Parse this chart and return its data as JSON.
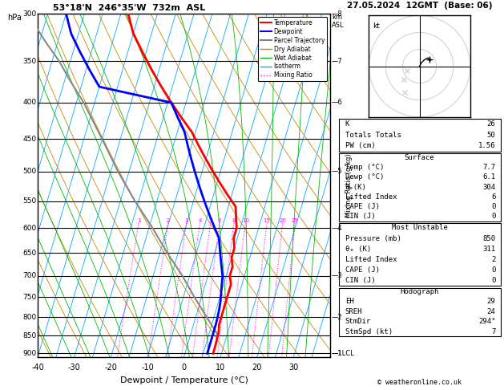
{
  "title_left": "53°18'N  246°35'W  732m  ASL",
  "title_right": "27.05.2024  12GMT  (Base: 06)",
  "xlabel": "Dewpoint / Temperature (°C)",
  "pressure_levels": [
    300,
    350,
    400,
    450,
    500,
    550,
    600,
    650,
    700,
    750,
    800,
    850,
    900
  ],
  "temp_xlim": [
    -40,
    40
  ],
  "temp_xticks": [
    -40,
    -30,
    -20,
    -10,
    0,
    10,
    20,
    30
  ],
  "km_ticks": [
    8,
    7,
    6,
    5,
    4,
    3,
    2,
    1
  ],
  "km_pressures": [
    300,
    350,
    400,
    500,
    600,
    700,
    800,
    900
  ],
  "lcl_pressure": 900,
  "bg_color": "#ffffff",
  "temp_data": {
    "pressure": [
      300,
      320,
      340,
      360,
      380,
      400,
      420,
      440,
      460,
      480,
      500,
      520,
      540,
      560,
      580,
      600,
      620,
      640,
      660,
      680,
      700,
      720,
      740,
      760,
      780,
      800,
      820,
      840,
      860,
      880,
      900
    ],
    "temp": [
      -43,
      -40,
      -36,
      -32,
      -28,
      -24,
      -20,
      -16,
      -13,
      -10,
      -7,
      -4,
      -1,
      2,
      3,
      4,
      4,
      5,
      5,
      6,
      6,
      7,
      7,
      7,
      7,
      7,
      7,
      7.5,
      7.6,
      7.7,
      7.7
    ]
  },
  "dewp_data": {
    "pressure": [
      300,
      320,
      340,
      360,
      380,
      400,
      420,
      440,
      460,
      480,
      500,
      520,
      540,
      560,
      580,
      600,
      620,
      640,
      660,
      680,
      700,
      720,
      740,
      760,
      780,
      800,
      820,
      840,
      860,
      880,
      900
    ],
    "dewp": [
      -60,
      -57,
      -53,
      -49,
      -45,
      -24,
      -21,
      -18,
      -16,
      -14,
      -12,
      -10,
      -8,
      -6,
      -4,
      -2,
      0,
      1,
      2,
      3,
      4,
      4.5,
      5,
      5.5,
      5.8,
      6,
      6.1,
      6.1,
      6.1,
      6.1,
      6.1
    ]
  },
  "parcel_data": {
    "pressure": [
      850,
      800,
      750,
      700,
      650,
      600,
      550,
      500,
      450,
      400,
      370,
      350,
      330,
      310,
      300
    ],
    "temp": [
      7.7,
      3,
      -2,
      -7,
      -13,
      -19,
      -26,
      -33,
      -40,
      -48,
      -54,
      -58,
      -63,
      -68,
      -71
    ]
  },
  "colors": {
    "temp": "#ff0000",
    "dewp": "#0000ff",
    "parcel": "#888888",
    "dry_adiabat": "#cc8800",
    "wet_adiabat": "#00bb00",
    "isotherm": "#00aaff",
    "mixing_ratio": "#ff00ff",
    "grid": "#000000"
  },
  "stats": {
    "K": 26,
    "TT": 50,
    "PW": 1.56,
    "surf_temp": 7.7,
    "surf_dewp": 6.1,
    "surf_theta_e": 304,
    "surf_li": 6,
    "surf_cape": 0,
    "surf_cin": 0,
    "mu_pressure": 850,
    "mu_theta_e": 311,
    "mu_li": 2,
    "mu_cape": 0,
    "mu_cin": 0,
    "hodo_EH": 29,
    "hodo_SREH": 24,
    "StmDir": "294°",
    "StmSpd": 7
  }
}
